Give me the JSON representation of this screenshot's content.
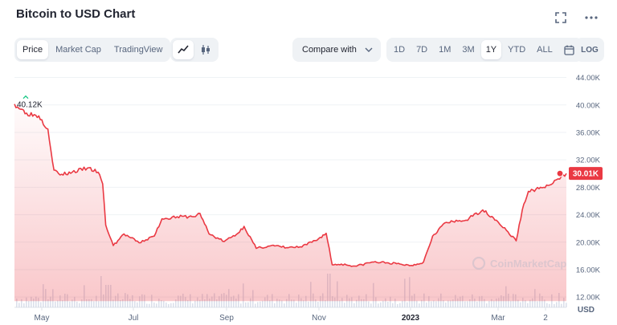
{
  "header": {
    "title": "Bitcoin to USD Chart"
  },
  "icons": {
    "fullscreen": "fullscreen-icon",
    "more": "more-icon",
    "line": "line-chart-icon",
    "candles": "candlestick-icon",
    "chevron": "chevron-down-icon",
    "calendar": "calendar-icon"
  },
  "toolbar": {
    "type_tabs": [
      "Price",
      "Market Cap",
      "TradingView"
    ],
    "compare_label": "Compare with",
    "ranges": [
      "1D",
      "7D",
      "1M",
      "3M",
      "1Y",
      "YTD",
      "ALL"
    ],
    "log_label": "LOG"
  },
  "colors": {
    "line": "#ea3943",
    "grid": "#eff2f5",
    "text": "#58667e",
    "volume": "#cfd6e4"
  },
  "chart_data": {
    "type": "area",
    "title": "Bitcoin to USD Chart",
    "currency": "USD",
    "x_ticks": [
      "May",
      "Jul",
      "Sep",
      "Nov",
      "2023",
      "Mar",
      "2"
    ],
    "y_ticks": [
      "12.00K",
      "16.00K",
      "20.00K",
      "24.00K",
      "28.00K",
      "32.00K",
      "36.00K",
      "40.00K",
      "44.00K"
    ],
    "ylim": [
      10500,
      45000
    ],
    "start_label": "40.12K",
    "current_label": "30.01K",
    "grid": true,
    "x": [
      "2022-04-14",
      "2022-04-22",
      "2022-04-30",
      "2022-05-06",
      "2022-05-10",
      "2022-05-14",
      "2022-05-22",
      "2022-06-01",
      "2022-06-08",
      "2022-06-11",
      "2022-06-13",
      "2022-06-18",
      "2022-06-25",
      "2022-07-05",
      "2022-07-15",
      "2022-07-20",
      "2022-07-30",
      "2022-08-10",
      "2022-08-14",
      "2022-08-20",
      "2022-08-30",
      "2022-09-08",
      "2022-09-12",
      "2022-09-20",
      "2022-09-30",
      "2022-10-10",
      "2022-10-20",
      "2022-10-31",
      "2022-11-05",
      "2022-11-09",
      "2022-11-15",
      "2022-11-25",
      "2022-12-05",
      "2022-12-15",
      "2022-12-31",
      "2023-01-08",
      "2023-01-14",
      "2023-01-22",
      "2023-02-05",
      "2023-02-16",
      "2023-02-25",
      "2023-03-10",
      "2023-03-14",
      "2023-03-18",
      "2023-03-25",
      "2023-04-02",
      "2023-04-12"
    ],
    "values": [
      40120,
      38800,
      38400,
      36500,
      30500,
      29800,
      30200,
      30800,
      30200,
      28500,
      22500,
      19500,
      21200,
      19900,
      20900,
      23400,
      23700,
      23700,
      24200,
      21200,
      20100,
      21300,
      22300,
      19100,
      19500,
      19200,
      19300,
      20500,
      21300,
      16700,
      16800,
      16500,
      17100,
      17000,
      16600,
      17100,
      20900,
      22800,
      23200,
      24700,
      23200,
      20200,
      24700,
      27400,
      27800,
      28400,
      30010
    ],
    "volume_note": "volume bars shown at bottom"
  }
}
